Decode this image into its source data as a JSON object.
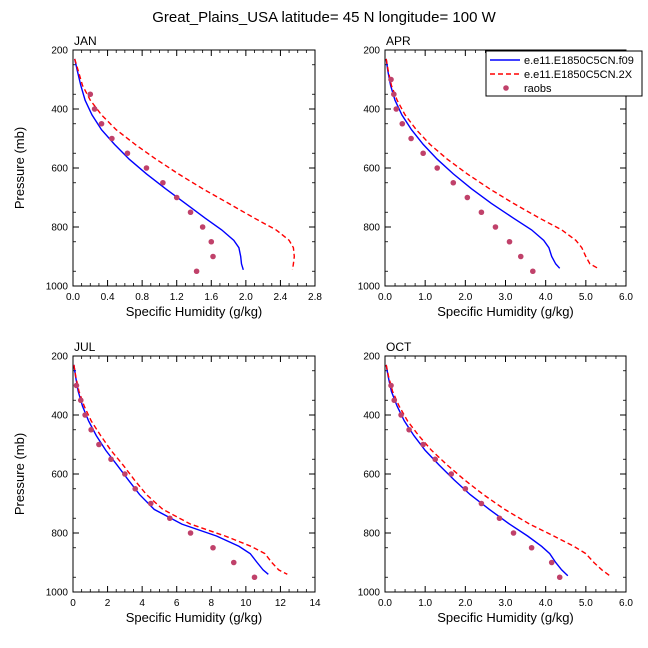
{
  "figure": {
    "title": "Great_Plains_USA  latitude= 45 N longitude= 100 W"
  },
  "colors": {
    "model_control": "#0000ff",
    "model_2x": "#ff0000",
    "raobs_marker": "#c0416a",
    "axes": "#000000"
  },
  "legend": {
    "placement": "top-right of APR panel",
    "entries": [
      {
        "label": "e.e11.E1850C5CN.f09",
        "style": "solid",
        "color": "#0000ff"
      },
      {
        "label": "e.e11.E1850C5CN.2X",
        "style": "dashed",
        "color": "#ff0000"
      },
      {
        "label": "raobs",
        "style": "marker",
        "color": "#c0416a"
      }
    ]
  },
  "chart_data": [
    {
      "type": "line",
      "panel": "JAN",
      "xlabel": "Specific Humidity (g/kg)",
      "ylabel": "Pressure (mb)",
      "xlim": [
        0,
        2.8
      ],
      "ylim": [
        1000,
        200
      ],
      "y_inverted": true,
      "xticks": [
        0,
        0.4,
        0.8,
        1.2,
        1.6,
        2,
        2.4,
        2.8
      ],
      "xtick_labels": [
        "0.0",
        "0.4",
        "0.8",
        "1.2",
        "1.6",
        "2.0",
        "2.4",
        "2.8"
      ],
      "yticks": [
        200,
        400,
        600,
        800,
        1000
      ],
      "series": [
        {
          "name": "e.e11.E1850C5CN.f09",
          "style": "solid",
          "points": [
            [
              0.02,
              230
            ],
            [
              0.05,
              270
            ],
            [
              0.09,
              320
            ],
            [
              0.14,
              370
            ],
            [
              0.22,
              420
            ],
            [
              0.33,
              470
            ],
            [
              0.48,
              520
            ],
            [
              0.65,
              570
            ],
            [
              0.85,
              620
            ],
            [
              1.07,
              670
            ],
            [
              1.3,
              720
            ],
            [
              1.53,
              770
            ],
            [
              1.72,
              810
            ],
            [
              1.86,
              845
            ],
            [
              1.92,
              870
            ],
            [
              1.94,
              900
            ],
            [
              1.95,
              925
            ],
            [
              1.97,
              945
            ]
          ]
        },
        {
          "name": "e.e11.E1850C5CN.2X",
          "style": "dashed",
          "points": [
            [
              0.02,
              230
            ],
            [
              0.06,
              270
            ],
            [
              0.11,
              320
            ],
            [
              0.2,
              370
            ],
            [
              0.33,
              420
            ],
            [
              0.5,
              470
            ],
            [
              0.72,
              520
            ],
            [
              0.96,
              570
            ],
            [
              1.22,
              620
            ],
            [
              1.5,
              670
            ],
            [
              1.8,
              720
            ],
            [
              2.1,
              770
            ],
            [
              2.35,
              810
            ],
            [
              2.5,
              845
            ],
            [
              2.55,
              870
            ],
            [
              2.56,
              900
            ],
            [
              2.55,
              925
            ],
            [
              2.54,
              945
            ]
          ]
        },
        {
          "name": "raobs",
          "style": "marker",
          "points": [
            [
              0.2,
              350
            ],
            [
              0.25,
              400
            ],
            [
              0.33,
              450
            ],
            [
              0.45,
              500
            ],
            [
              0.63,
              550
            ],
            [
              0.85,
              600
            ],
            [
              1.04,
              650
            ],
            [
              1.2,
              700
            ],
            [
              1.36,
              750
            ],
            [
              1.5,
              800
            ],
            [
              1.6,
              850
            ],
            [
              1.62,
              900
            ],
            [
              1.43,
              950
            ]
          ]
        }
      ]
    },
    {
      "type": "line",
      "panel": "APR",
      "xlabel": "Specific Humidity (g/kg)",
      "ylabel": "",
      "xlim": [
        0,
        6
      ],
      "ylim": [
        1000,
        200
      ],
      "y_inverted": true,
      "xticks": [
        0,
        1,
        2,
        3,
        4,
        5,
        6
      ],
      "xtick_labels": [
        "0.0",
        "1.0",
        "2.0",
        "3.0",
        "4.0",
        "5.0",
        "6.0"
      ],
      "yticks": [
        200,
        400,
        600,
        800,
        1000
      ],
      "series": [
        {
          "name": "e.e11.E1850C5CN.f09",
          "style": "solid",
          "points": [
            [
              0.03,
              230
            ],
            [
              0.07,
              270
            ],
            [
              0.14,
              320
            ],
            [
              0.25,
              370
            ],
            [
              0.42,
              420
            ],
            [
              0.66,
              470
            ],
            [
              0.95,
              520
            ],
            [
              1.3,
              570
            ],
            [
              1.7,
              620
            ],
            [
              2.15,
              670
            ],
            [
              2.65,
              720
            ],
            [
              3.2,
              770
            ],
            [
              3.65,
              810
            ],
            [
              3.95,
              845
            ],
            [
              4.08,
              870
            ],
            [
              4.15,
              900
            ],
            [
              4.25,
              925
            ],
            [
              4.35,
              940
            ]
          ]
        },
        {
          "name": "e.e11.E1850C5CN.2X",
          "style": "dashed",
          "points": [
            [
              0.03,
              230
            ],
            [
              0.08,
              270
            ],
            [
              0.16,
              320
            ],
            [
              0.3,
              370
            ],
            [
              0.5,
              420
            ],
            [
              0.78,
              470
            ],
            [
              1.12,
              520
            ],
            [
              1.55,
              570
            ],
            [
              2.05,
              620
            ],
            [
              2.6,
              670
            ],
            [
              3.2,
              720
            ],
            [
              3.85,
              770
            ],
            [
              4.4,
              810
            ],
            [
              4.75,
              845
            ],
            [
              4.9,
              870
            ],
            [
              5.0,
              900
            ],
            [
              5.1,
              925
            ],
            [
              5.3,
              940
            ]
          ]
        },
        {
          "name": "raobs",
          "style": "marker",
          "points": [
            [
              0.15,
              300
            ],
            [
              0.22,
              350
            ],
            [
              0.28,
              400
            ],
            [
              0.43,
              450
            ],
            [
              0.65,
              500
            ],
            [
              0.95,
              550
            ],
            [
              1.3,
              600
            ],
            [
              1.7,
              650
            ],
            [
              2.05,
              700
            ],
            [
              2.4,
              750
            ],
            [
              2.75,
              800
            ],
            [
              3.1,
              850
            ],
            [
              3.38,
              900
            ],
            [
              3.68,
              950
            ]
          ]
        }
      ]
    },
    {
      "type": "line",
      "panel": "JUL",
      "xlabel": "Specific Humidity (g/kg)",
      "ylabel": "Pressure (mb)",
      "xlim": [
        0,
        14
      ],
      "ylim": [
        1000,
        200
      ],
      "y_inverted": true,
      "xticks": [
        0,
        2,
        4,
        6,
        8,
        10,
        12,
        14
      ],
      "xtick_labels": [
        "0",
        "2",
        "4",
        "6",
        "8",
        "10",
        "12",
        "14"
      ],
      "yticks": [
        200,
        400,
        600,
        800,
        1000
      ],
      "series": [
        {
          "name": "e.e11.E1850C5CN.f09",
          "style": "solid",
          "points": [
            [
              0.05,
              230
            ],
            [
              0.15,
              270
            ],
            [
              0.3,
              320
            ],
            [
              0.55,
              370
            ],
            [
              0.9,
              420
            ],
            [
              1.35,
              470
            ],
            [
              1.9,
              520
            ],
            [
              2.55,
              570
            ],
            [
              3.2,
              620
            ],
            [
              3.85,
              670
            ],
            [
              4.7,
              720
            ],
            [
              6.3,
              770
            ],
            [
              8.3,
              810
            ],
            [
              9.6,
              845
            ],
            [
              10.25,
              870
            ],
            [
              10.65,
              900
            ],
            [
              11.0,
              925
            ],
            [
              11.3,
              940
            ]
          ]
        },
        {
          "name": "e.e11.E1850C5CN.2X",
          "style": "dashed",
          "points": [
            [
              0.05,
              230
            ],
            [
              0.16,
              270
            ],
            [
              0.35,
              320
            ],
            [
              0.65,
              370
            ],
            [
              1.05,
              420
            ],
            [
              1.6,
              470
            ],
            [
              2.2,
              520
            ],
            [
              2.9,
              570
            ],
            [
              3.55,
              620
            ],
            [
              4.25,
              670
            ],
            [
              5.2,
              720
            ],
            [
              6.8,
              770
            ],
            [
              8.8,
              810
            ],
            [
              10.3,
              845
            ],
            [
              11.1,
              870
            ],
            [
              11.5,
              900
            ],
            [
              11.9,
              925
            ],
            [
              12.4,
              940
            ]
          ]
        },
        {
          "name": "raobs",
          "style": "marker",
          "points": [
            [
              0.2,
              300
            ],
            [
              0.45,
              350
            ],
            [
              0.7,
              400
            ],
            [
              1.05,
              450
            ],
            [
              1.5,
              500
            ],
            [
              2.2,
              550
            ],
            [
              3.0,
              600
            ],
            [
              3.6,
              650
            ],
            [
              4.5,
              700
            ],
            [
              5.6,
              750
            ],
            [
              6.8,
              800
            ],
            [
              8.1,
              850
            ],
            [
              9.3,
              900
            ],
            [
              10.5,
              950
            ]
          ]
        }
      ]
    },
    {
      "type": "line",
      "panel": "OCT",
      "xlabel": "Specific Humidity (g/kg)",
      "ylabel": "",
      "xlim": [
        0,
        6
      ],
      "ylim": [
        1000,
        200
      ],
      "y_inverted": true,
      "xticks": [
        0,
        1,
        2,
        3,
        4,
        5,
        6
      ],
      "xtick_labels": [
        "0.0",
        "1.0",
        "2.0",
        "3.0",
        "4.0",
        "5.0",
        "6.0"
      ],
      "yticks": [
        200,
        400,
        600,
        800,
        1000
      ],
      "series": [
        {
          "name": "e.e11.E1850C5CN.f09",
          "style": "solid",
          "points": [
            [
              0.03,
              230
            ],
            [
              0.08,
              270
            ],
            [
              0.16,
              320
            ],
            [
              0.3,
              370
            ],
            [
              0.48,
              420
            ],
            [
              0.72,
              470
            ],
            [
              1.0,
              520
            ],
            [
              1.35,
              570
            ],
            [
              1.72,
              620
            ],
            [
              2.12,
              670
            ],
            [
              2.6,
              720
            ],
            [
              3.1,
              770
            ],
            [
              3.55,
              810
            ],
            [
              3.9,
              845
            ],
            [
              4.1,
              870
            ],
            [
              4.25,
              900
            ],
            [
              4.4,
              925
            ],
            [
              4.55,
              945
            ]
          ]
        },
        {
          "name": "e.e11.E1850C5CN.2X",
          "style": "dashed",
          "points": [
            [
              0.03,
              230
            ],
            [
              0.09,
              270
            ],
            [
              0.19,
              320
            ],
            [
              0.35,
              370
            ],
            [
              0.56,
              420
            ],
            [
              0.84,
              470
            ],
            [
              1.16,
              520
            ],
            [
              1.55,
              570
            ],
            [
              1.98,
              620
            ],
            [
              2.45,
              670
            ],
            [
              2.98,
              720
            ],
            [
              3.6,
              770
            ],
            [
              4.2,
              810
            ],
            [
              4.7,
              845
            ],
            [
              5.0,
              870
            ],
            [
              5.2,
              900
            ],
            [
              5.4,
              925
            ],
            [
              5.6,
              945
            ]
          ]
        },
        {
          "name": "raobs",
          "style": "marker",
          "points": [
            [
              0.15,
              300
            ],
            [
              0.23,
              350
            ],
            [
              0.4,
              400
            ],
            [
              0.6,
              450
            ],
            [
              0.95,
              500
            ],
            [
              1.25,
              550
            ],
            [
              1.65,
              600
            ],
            [
              2.0,
              650
            ],
            [
              2.4,
              700
            ],
            [
              2.85,
              750
            ],
            [
              3.2,
              800
            ],
            [
              3.65,
              850
            ],
            [
              4.15,
              900
            ],
            [
              4.35,
              950
            ]
          ]
        }
      ]
    }
  ]
}
